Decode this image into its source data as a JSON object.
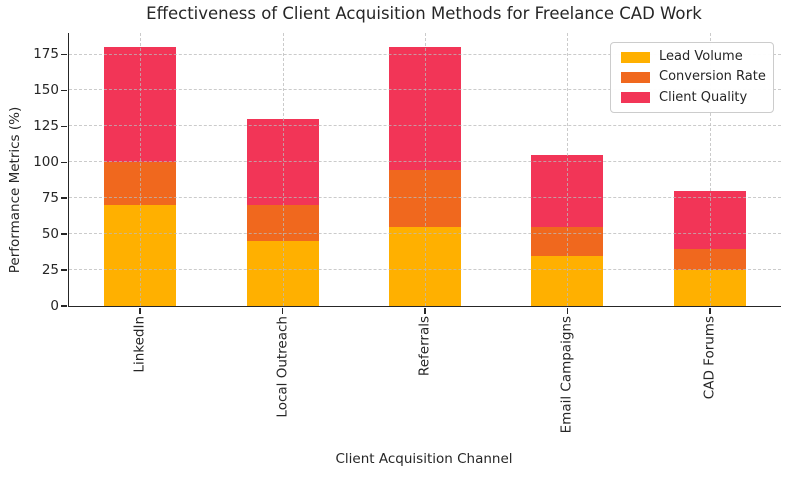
{
  "chart_data": {
    "type": "bar",
    "stacked": true,
    "title": "Effectiveness of Client Acquisition Methods for Freelance CAD Work",
    "xlabel": "Client Acquisition Channel",
    "ylabel": "Performance Metrics (%)",
    "categories": [
      "LinkedIn",
      "Local Outreach",
      "Referrals",
      "Email Campaigns",
      "CAD Forums"
    ],
    "series": [
      {
        "name": "Lead Volume",
        "color": "#FFB000",
        "values": [
          70,
          45,
          55,
          35,
          25
        ]
      },
      {
        "name": "Conversion Rate",
        "color": "#F0681E",
        "values": [
          30,
          25,
          40,
          20,
          15
        ]
      },
      {
        "name": "Client Quality",
        "color": "#F23557",
        "values": [
          80,
          60,
          85,
          50,
          40
        ]
      }
    ],
    "totals": [
      180,
      130,
      180,
      105,
      80
    ],
    "yticks": [
      0,
      25,
      50,
      75,
      100,
      125,
      150,
      175
    ],
    "ylim": [
      0,
      190
    ],
    "grid": "dashed-both-axes",
    "legend_position": "upper-right",
    "bar_width_fraction": 0.505,
    "axis_color": "#262626",
    "grid_color": "#bdbdbd",
    "background_color": "#ffffff"
  }
}
